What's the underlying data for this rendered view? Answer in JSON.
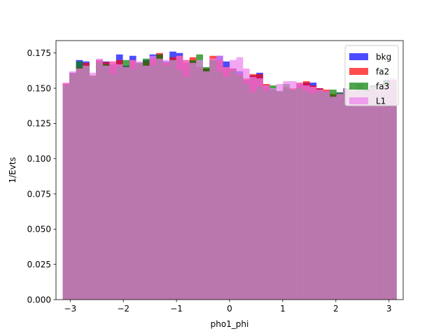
{
  "chart_data": {
    "type": "histogram",
    "title": "",
    "xlabel": "pho1_phi",
    "ylabel": "1/Evts",
    "xlim": [
      -3.2673,
      3.2673
    ],
    "ylim": [
      0,
      0.1838
    ],
    "xticks": [
      -3,
      -2,
      -1,
      0,
      1,
      2,
      3
    ],
    "xtick_labels": [
      "−3",
      "−2",
      "−1",
      "0",
      "1",
      "2",
      "3"
    ],
    "yticks": [
      0,
      0.025,
      0.05,
      0.075,
      0.1,
      0.125,
      0.15,
      0.175
    ],
    "ytick_labels": [
      "0.000",
      "0.025",
      "0.050",
      "0.075",
      "0.100",
      "0.125",
      "0.150",
      "0.175"
    ],
    "bins": {
      "start": -3.1416,
      "end": 3.1416,
      "count": 50
    },
    "legend": {
      "position": "top-right"
    },
    "series": [
      {
        "name": "bkg",
        "color": "#0000ff",
        "opacity": 0.7,
        "values": [
          0.153,
          0.161,
          0.17,
          0.169,
          0.158,
          0.17,
          0.169,
          0.167,
          0.174,
          0.166,
          0.173,
          0.168,
          0.17,
          0.174,
          0.174,
          0.169,
          0.176,
          0.175,
          0.168,
          0.169,
          0.165,
          0.164,
          0.17,
          0.173,
          0.169,
          0.164,
          0.162,
          0.156,
          0.159,
          0.161,
          0.152,
          0.149,
          0.147,
          0.15,
          0.149,
          0.153,
          0.154,
          0.154,
          0.15,
          0.148,
          0.145,
          0.147,
          0.15,
          0.146,
          0.153,
          0.149,
          0.152,
          0.147,
          0.156,
          0.155
        ]
      },
      {
        "name": "fa2",
        "color": "#ff0000",
        "opacity": 0.7,
        "values": [
          0.1535,
          0.1605,
          0.165,
          0.168,
          0.159,
          0.17,
          0.1685,
          0.169,
          0.17,
          0.165,
          0.17,
          0.167,
          0.169,
          0.171,
          0.175,
          0.168,
          0.172,
          0.173,
          0.17,
          0.172,
          0.165,
          0.164,
          0.173,
          0.17,
          0.165,
          0.164,
          0.16,
          0.157,
          0.16,
          0.16,
          0.153,
          0.148,
          0.148,
          0.151,
          0.15,
          0.154,
          0.155,
          0.152,
          0.15,
          0.149,
          0.146,
          0.146,
          0.149,
          0.148,
          0.152,
          0.148,
          0.151,
          0.148,
          0.155,
          0.156
        ]
      },
      {
        "name": "fa3",
        "color": "#008000",
        "opacity": 0.7,
        "values": [
          0.152,
          0.16,
          0.169,
          0.166,
          0.159,
          0.168,
          0.167,
          0.16,
          0.165,
          0.17,
          0.164,
          0.168,
          0.171,
          0.166,
          0.174,
          0.166,
          0.17,
          0.163,
          0.158,
          0.17,
          0.174,
          0.165,
          0.17,
          0.162,
          0.158,
          0.162,
          0.159,
          0.153,
          0.147,
          0.151,
          0.148,
          0.152,
          0.148,
          0.153,
          0.149,
          0.15,
          0.148,
          0.146,
          0.148,
          0.147,
          0.149,
          0.147,
          0.15,
          0.148,
          0.151,
          0.149,
          0.152,
          0.15,
          0.155,
          0.155
        ]
      },
      {
        "name": "L1",
        "color": "#ee82ee",
        "opacity": 0.7,
        "values": [
          0.154,
          0.162,
          0.164,
          0.166,
          0.161,
          0.171,
          0.166,
          0.169,
          0.167,
          0.165,
          0.17,
          0.169,
          0.166,
          0.173,
          0.171,
          0.17,
          0.17,
          0.173,
          0.17,
          0.168,
          0.17,
          0.162,
          0.171,
          0.173,
          0.165,
          0.17,
          0.172,
          0.164,
          0.158,
          0.157,
          0.152,
          0.15,
          0.153,
          0.155,
          0.155,
          0.154,
          0.152,
          0.151,
          0.149,
          0.148,
          0.144,
          0.146,
          0.15,
          0.149,
          0.152,
          0.148,
          0.151,
          0.149,
          0.152,
          0.157
        ]
      }
    ]
  }
}
